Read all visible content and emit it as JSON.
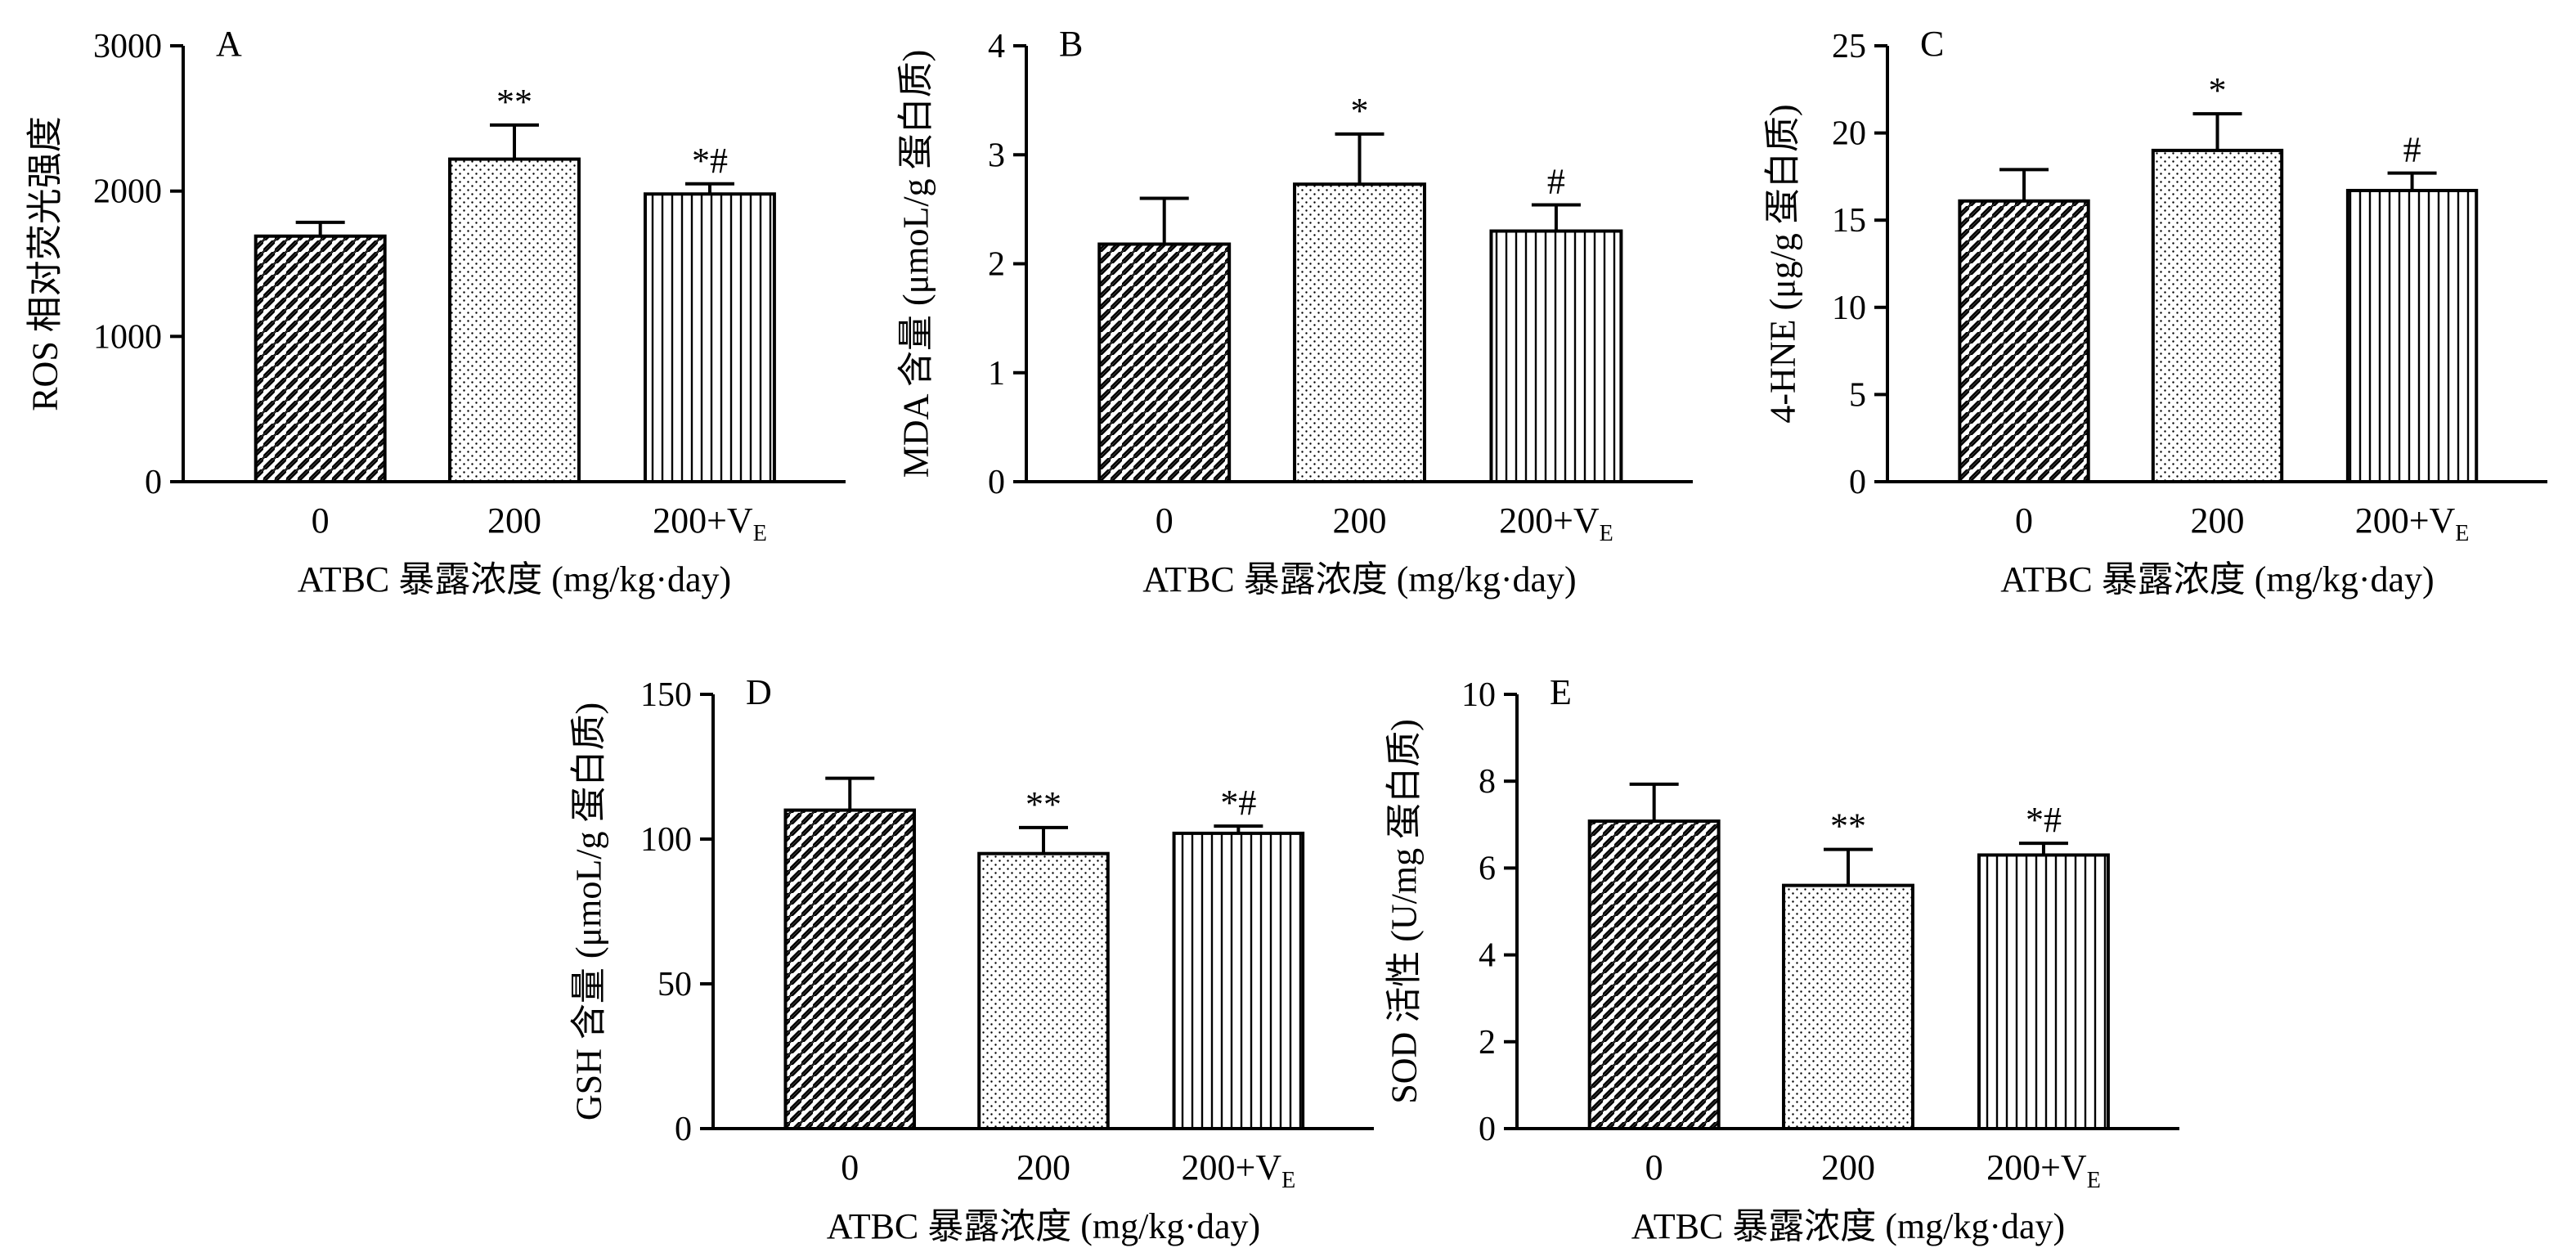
{
  "chart_data": [
    {
      "panel": "A",
      "type": "bar",
      "categories": [
        "0",
        "200",
        "200+V"
      ],
      "category_subscripts": [
        "",
        "",
        "E"
      ],
      "values": [
        1690,
        2220,
        1980
      ],
      "errors": [
        95,
        235,
        70
      ],
      "significance": [
        "",
        "**",
        "*#"
      ],
      "ylabel": "ROS 相对荧光强度",
      "xlabel": "ATBC 暴露浓度 (mg/kg·day)",
      "ylim": [
        0,
        3000
      ],
      "yticks": [
        0,
        1000,
        2000,
        3000
      ],
      "patterns": [
        "diagonal",
        "dots",
        "vertical"
      ]
    },
    {
      "panel": "B",
      "type": "bar",
      "categories": [
        "0",
        "200",
        "200+V"
      ],
      "category_subscripts": [
        "",
        "",
        "E"
      ],
      "values": [
        2.18,
        2.73,
        2.3
      ],
      "errors": [
        0.42,
        0.46,
        0.24
      ],
      "significance": [
        "",
        "*",
        "#"
      ],
      "ylabel": "MDA 含量 (μmoL/g 蛋白质)",
      "xlabel": "ATBC 暴露浓度 (mg/kg·day)",
      "ylim": [
        0,
        4
      ],
      "yticks": [
        0,
        1,
        2,
        3,
        4
      ],
      "patterns": [
        "diagonal",
        "dots",
        "vertical"
      ]
    },
    {
      "panel": "C",
      "type": "bar",
      "categories": [
        "0",
        "200",
        "200+V"
      ],
      "category_subscripts": [
        "",
        "",
        "E"
      ],
      "values": [
        16.1,
        19.0,
        16.7
      ],
      "errors": [
        1.8,
        2.1,
        1.0
      ],
      "significance": [
        "",
        "*",
        "#"
      ],
      "ylabel": "4-HNE (μg/g 蛋白质)",
      "xlabel": "ATBC 暴露浓度 (mg/kg·day)",
      "ylim": [
        0,
        25
      ],
      "yticks": [
        0,
        5,
        10,
        15,
        20,
        25
      ],
      "patterns": [
        "diagonal",
        "dots",
        "vertical"
      ]
    },
    {
      "panel": "D",
      "type": "bar",
      "categories": [
        "0",
        "200",
        "200+V"
      ],
      "category_subscripts": [
        "",
        "",
        "E"
      ],
      "values": [
        110,
        95,
        102
      ],
      "errors": [
        11,
        9,
        2.5
      ],
      "significance": [
        "",
        "**",
        "*#"
      ],
      "ylabel": "GSH 含量 (μmoL/g 蛋白质)",
      "xlabel": "ATBC 暴露浓度 (mg/kg·day)",
      "ylim": [
        0,
        150
      ],
      "yticks": [
        0,
        50,
        100,
        150
      ],
      "patterns": [
        "diagonal",
        "dots",
        "vertical"
      ]
    },
    {
      "panel": "E",
      "type": "bar",
      "categories": [
        "0",
        "200",
        "200+V"
      ],
      "category_subscripts": [
        "",
        "",
        "E"
      ],
      "values": [
        7.08,
        5.6,
        6.3
      ],
      "errors": [
        0.85,
        0.83,
        0.27
      ],
      "significance": [
        "",
        "**",
        "*#"
      ],
      "ylabel": "SOD 活性 (U/mg 蛋白质)",
      "xlabel": "ATBC 暴露浓度 (mg/kg·day)",
      "ylim": [
        0,
        10
      ],
      "yticks": [
        0,
        2,
        4,
        6,
        8,
        10
      ],
      "patterns": [
        "diagonal",
        "dots",
        "vertical"
      ]
    }
  ]
}
